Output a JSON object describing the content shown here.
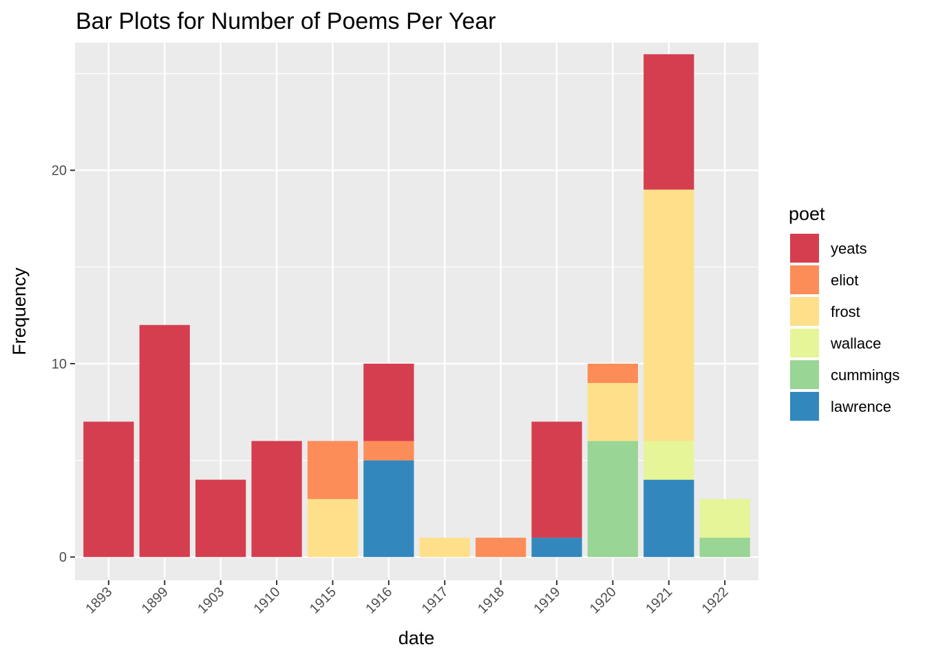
{
  "chart_data": {
    "type": "bar",
    "stacked": true,
    "title": "Bar Plots for Number of Poems Per Year",
    "xlabel": "date",
    "ylabel": "Frequency",
    "ylim": [
      -1.2,
      26.6
    ],
    "yticks": [
      0,
      10,
      20
    ],
    "categories": [
      "1893",
      "1899",
      "1903",
      "1910",
      "1915",
      "1916",
      "1917",
      "1918",
      "1919",
      "1920",
      "1921",
      "1922"
    ],
    "grid": true,
    "legend": {
      "title": "poet",
      "position": "right"
    },
    "series": [
      {
        "name": "yeats",
        "color": "#d53e4f",
        "values": [
          7,
          12,
          4,
          6,
          0,
          4,
          0,
          0,
          6,
          0,
          7,
          0
        ]
      },
      {
        "name": "eliot",
        "color": "#fc8d59",
        "values": [
          0,
          0,
          0,
          0,
          3,
          1,
          0,
          1,
          0,
          1,
          0,
          0
        ]
      },
      {
        "name": "frost",
        "color": "#fee08b",
        "values": [
          0,
          0,
          0,
          0,
          3,
          0,
          1,
          0,
          0,
          3,
          13,
          0
        ]
      },
      {
        "name": "wallace",
        "color": "#e6f598",
        "values": [
          0,
          0,
          0,
          0,
          0,
          0,
          0,
          0,
          0,
          0,
          2,
          2
        ]
      },
      {
        "name": "cummings",
        "color": "#99d594",
        "values": [
          0,
          0,
          0,
          0,
          0,
          0,
          0,
          0,
          0,
          6,
          0,
          1
        ]
      },
      {
        "name": "lawrence",
        "color": "#3288bd",
        "values": [
          0,
          0,
          0,
          0,
          0,
          5,
          0,
          0,
          1,
          0,
          4,
          0
        ]
      }
    ]
  }
}
